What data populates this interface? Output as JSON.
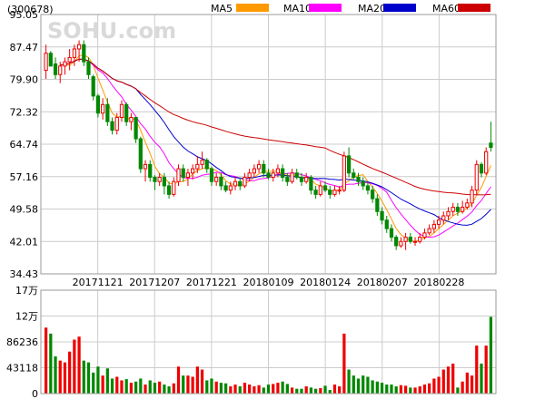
{
  "chart_data": {
    "type": "candlestick",
    "code": "(300678)",
    "watermark": "SOHU.com",
    "legend": [
      {
        "name": "MA5",
        "color": "#ff9900"
      },
      {
        "name": "MA10",
        "color": "#ff00ff"
      },
      {
        "name": "MA20",
        "color": "#0000cc"
      },
      {
        "name": "MA60",
        "color": "#cc0000"
      }
    ],
    "price_axis": {
      "ticks": [
        "95.05",
        "87.47",
        "79.90",
        "72.32",
        "64.74",
        "57.16",
        "49.58",
        "42.01",
        "34.43"
      ],
      "ylim": [
        34.43,
        95.05
      ]
    },
    "volume_axis": {
      "ticks": [
        "17万",
        "12万",
        "86236",
        "43118",
        "0"
      ],
      "ylim": [
        0,
        172472
      ]
    },
    "x_labels": [
      "20171121",
      "20171207",
      "20171221",
      "20180109",
      "20180124",
      "20180207",
      "20180228"
    ],
    "colors": {
      "up": "#ee0000",
      "down": "#008800",
      "grid": "#cccccc"
    },
    "candles": [
      [
        82,
        88,
        80,
        86
      ],
      [
        86,
        86.5,
        83,
        83
      ],
      [
        83.5,
        85,
        80,
        81
      ],
      [
        81,
        84,
        79,
        83
      ],
      [
        83,
        85,
        81,
        84
      ],
      [
        84,
        87,
        82,
        85
      ],
      [
        85,
        88,
        83,
        87
      ],
      [
        87,
        89,
        84,
        88
      ],
      [
        88,
        89,
        83,
        84
      ],
      [
        84,
        85,
        80,
        81
      ],
      [
        80.5,
        81,
        75,
        76
      ],
      [
        76,
        76.5,
        71,
        72
      ],
      [
        72,
        75.5,
        70.5,
        74
      ],
      [
        74,
        75.5,
        69,
        70
      ],
      [
        70,
        71,
        67,
        68
      ],
      [
        68,
        72,
        67,
        71
      ],
      [
        71,
        75,
        70,
        74
      ],
      [
        74,
        74.5,
        69,
        70
      ],
      [
        70,
        72,
        68,
        71
      ],
      [
        71,
        71,
        65,
        66
      ],
      [
        66,
        66.5,
        58,
        59
      ],
      [
        59,
        61,
        56,
        60
      ],
      [
        60,
        61,
        56,
        57
      ],
      [
        57,
        57.5,
        54,
        56
      ],
      [
        56,
        58,
        55,
        57
      ],
      [
        57,
        58,
        53,
        55
      ],
      [
        55,
        56,
        52,
        53
      ],
      [
        53,
        57,
        52.5,
        56
      ],
      [
        56,
        60,
        55,
        59
      ],
      [
        59,
        60,
        56,
        57
      ],
      [
        57,
        59,
        55,
        58
      ],
      [
        58,
        60,
        56.5,
        59
      ],
      [
        59,
        62,
        58,
        60
      ],
      [
        60,
        63,
        59,
        61
      ],
      [
        61,
        61.5,
        58,
        59
      ],
      [
        59,
        59.5,
        55,
        56
      ],
      [
        56,
        58,
        55,
        57
      ],
      [
        57,
        58,
        54,
        55
      ],
      [
        55,
        56,
        53.5,
        54
      ],
      [
        54,
        56,
        53,
        55
      ],
      [
        55,
        57,
        54,
        56
      ],
      [
        56,
        57,
        54,
        55
      ],
      [
        55,
        58,
        54.5,
        57
      ],
      [
        57,
        59,
        56,
        58
      ],
      [
        58,
        60,
        57,
        59
      ],
      [
        59,
        61,
        58,
        60
      ],
      [
        60,
        61,
        57,
        58
      ],
      [
        58,
        59,
        56.5,
        57
      ],
      [
        57,
        59,
        56,
        58
      ],
      [
        58,
        60,
        57,
        59
      ],
      [
        59,
        60,
        56,
        57
      ],
      [
        57,
        58,
        55,
        56
      ],
      [
        56,
        59,
        55.5,
        58
      ],
      [
        58,
        59,
        56.5,
        57
      ],
      [
        57,
        58,
        55,
        56
      ],
      [
        56,
        58,
        55.5,
        57
      ],
      [
        57,
        57.5,
        53,
        54
      ],
      [
        54,
        55,
        52,
        53
      ],
      [
        53,
        56,
        52.5,
        55
      ],
      [
        55,
        56,
        53.5,
        54
      ],
      [
        54,
        55,
        52,
        53
      ],
      [
        53,
        55,
        52.5,
        54
      ],
      [
        54,
        55,
        53,
        54
      ],
      [
        54,
        63,
        53.5,
        62
      ],
      [
        62,
        64,
        57,
        58
      ],
      [
        58,
        59,
        56.5,
        57
      ],
      [
        57,
        58,
        55,
        56
      ],
      [
        56,
        57,
        54,
        55
      ],
      [
        55,
        56,
        53,
        54
      ],
      [
        54,
        55,
        51,
        52
      ],
      [
        52,
        53,
        48,
        49
      ],
      [
        49,
        50,
        46,
        47
      ],
      [
        47,
        48,
        44,
        45
      ],
      [
        45,
        46,
        42,
        43
      ],
      [
        43,
        43.5,
        40,
        41
      ],
      [
        41,
        43,
        40.5,
        42
      ],
      [
        42,
        44,
        40,
        43
      ],
      [
        43,
        44,
        41.5,
        42
      ],
      [
        42,
        43,
        41,
        42
      ],
      [
        42,
        44,
        41.5,
        43
      ],
      [
        43,
        45,
        42.5,
        44
      ],
      [
        44,
        46,
        43.5,
        45
      ],
      [
        45,
        47,
        44,
        46
      ],
      [
        46,
        48,
        45,
        47
      ],
      [
        47,
        49,
        46,
        48
      ],
      [
        48,
        50,
        47,
        49
      ],
      [
        49,
        51,
        48,
        50
      ],
      [
        50,
        51,
        48,
        49
      ],
      [
        49,
        51.5,
        48.5,
        50
      ],
      [
        50,
        52,
        49.5,
        51
      ],
      [
        51,
        55,
        50,
        54
      ],
      [
        54,
        61,
        53,
        60
      ],
      [
        60,
        60.5,
        57,
        58
      ],
      [
        58,
        64,
        57.5,
        63
      ],
      [
        65,
        70,
        63,
        64
      ]
    ],
    "volumes": [
      110000,
      100000,
      62000,
      55000,
      52000,
      70000,
      90000,
      95000,
      55000,
      52000,
      35000,
      45000,
      30000,
      42000,
      25000,
      28000,
      22000,
      24000,
      18000,
      20000,
      25000,
      15000,
      22000,
      18000,
      20000,
      15000,
      12000,
      17000,
      45000,
      30000,
      30000,
      28000,
      45000,
      40000,
      22000,
      25000,
      20000,
      18000,
      17000,
      12000,
      15000,
      12000,
      18000,
      15000,
      12000,
      14000,
      10000,
      15000,
      16000,
      18000,
      20000,
      16000,
      10000,
      8000,
      8000,
      12000,
      10000,
      8000,
      9000,
      13000,
      6000,
      15000,
      12000,
      100000,
      40000,
      30000,
      25000,
      30000,
      28000,
      22000,
      20000,
      18000,
      15000,
      15000,
      12000,
      14000,
      13000,
      10000,
      10000,
      12000,
      15000,
      17000,
      25000,
      28000,
      40000,
      45000,
      50000,
      10000,
      20000,
      35000,
      30000,
      80000,
      50000,
      80000,
      128000
    ]
  }
}
